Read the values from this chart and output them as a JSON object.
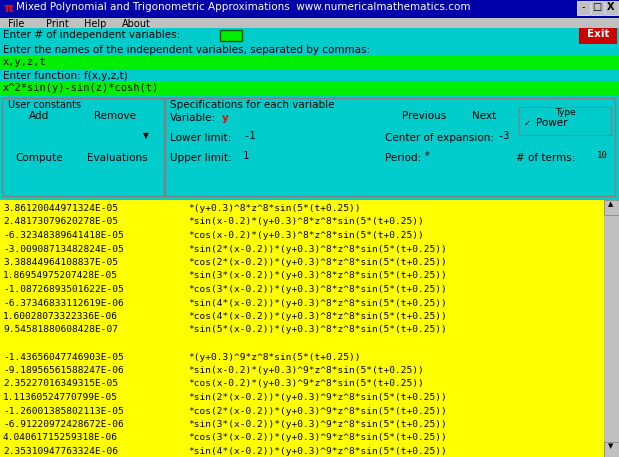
{
  "title": "Mixed Polynomial and Trigonometric Approximations  www.numericalmathematics.com",
  "title_bg": "#0000aa",
  "title_fg": "#ffffff",
  "title_pi": "π",
  "menu_items": [
    "File",
    "Print",
    "Help",
    "About"
  ],
  "bg_color": "#00cccc",
  "row1_label": "Enter # of independent variables:",
  "row1_input_color": "#00ee00",
  "exit_bg": "#cc0000",
  "row2_label": "Enter the names of the independent variables, separated by commas:",
  "row2_input": "x,y,z,t",
  "row2_input_color": "#00ee00",
  "row3_label": "Enter function: f(x,y,z,t)",
  "row3_input": "x^2*sin(y)-sin(z)*cosh(t)",
  "row3_input_color": "#00ee00",
  "user_constants_label": "User constants",
  "add_btn": "Add",
  "remove_btn": "Remove",
  "add_remove_color": "#ff44ff",
  "compute_btn": "Compute",
  "evaluations_btn": "Evaluations",
  "compute_color": "#ff8800",
  "specs_label": "Specifications for each variable",
  "variable_color": "#ff0000",
  "previous_btn": "Previous",
  "next_btn": "Next",
  "btn_orange": "#ff8800",
  "lower_limit_label": "Lower limit:",
  "lower_limit_val": "-1",
  "upper_limit_label": "Upper limit:",
  "upper_limit_val": "1",
  "center_label": "Center of expansion:",
  "center_val": "-3",
  "period_label": "Period:",
  "period_val": "*",
  "terms_label": "# of terms:",
  "terms_val": "10",
  "type_label": "Type",
  "power_label": "Power",
  "input_green": "#00ff00",
  "output_bg": "#ffff00",
  "output_fg": "#000000",
  "scrollbar_color": "#c0c0c0",
  "menu_bg": "#c0c0c0",
  "output_lines": [
    [
      "3.86120044971324E-05",
      "*(y+0.3)^8*z^8*sin(5*(t+0.25))"
    ],
    [
      "2.48173079620278E-05",
      "*sin(x-0.2)*(y+0.3)^8*z^8*sin(5*(t+0.25))"
    ],
    [
      "-6.32348389641418E-05",
      "*cos(x-0.2)*(y+0.3)^8*z^8*sin(5*(t+0.25))"
    ],
    [
      "-3.00908713482824E-05",
      "*sin(2*(x-0.2))*(y+0.3)^8*z^8*sin(5*(t+0.25))"
    ],
    [
      "3.38844964108837E-05",
      "*cos(2*(x-0.2))*(y+0.3)^8*z^8*sin(5*(t+0.25))"
    ],
    [
      "1.86954975207428E-05",
      "*sin(3*(x-0.2))*(y+0.3)^8*z^8*sin(5*(t+0.25))"
    ],
    [
      "-1.08726893501622E-05",
      "*cos(3*(x-0.2))*(y+0.3)^8*z^8*sin(5*(t+0.25))"
    ],
    [
      "-6.37346833112619E-06",
      "*sin(4*(x-0.2))*(y+0.3)^8*z^8*sin(5*(t+0.25))"
    ],
    [
      "1.60028073322336E-06",
      "*cos(4*(x-0.2))*(y+0.3)^8*z^8*sin(5*(t+0.25))"
    ],
    [
      "9.54581880608428E-07",
      "*sin(5*(x-0.2))*(y+0.3)^8*z^8*sin(5*(t+0.25))"
    ],
    [
      "",
      ""
    ],
    [
      "-1.43656047746903E-05",
      "*(y+0.3)^9*z^8*sin(5*(t+0.25))"
    ],
    [
      "-9.18956561588247E-06",
      "*sin(x-0.2)*(y+0.3)^9*z^8*sin(5*(t+0.25))"
    ],
    [
      "2.35227016349315E-05",
      "*cos(x-0.2)*(y+0.3)^9*z^8*sin(5*(t+0.25))"
    ],
    [
      "1.11360524770799E-05",
      "*sin(2*(x-0.2))*(y+0.3)^9*z^8*sin(5*(t+0.25))"
    ],
    [
      "-1.26001385802113E-05",
      "*cos(2*(x-0.2))*(y+0.3)^9*z^8*sin(5*(t+0.25))"
    ],
    [
      "-6.91220972428672E-06",
      "*sin(3*(x-0.2))*(y+0.3)^9*z^8*sin(5*(t+0.25))"
    ],
    [
      "4.04061715259318E-06",
      "*cos(3*(x-0.2))*(y+0.3)^9*z^8*sin(5*(t+0.25))"
    ],
    [
      "2.35310947763324E-06",
      "*sin(4*(x-0.2))*(y+0.3)^9*z^8*sin(5*(t+0.25))"
    ]
  ],
  "fig_width": 6.19,
  "fig_height": 4.57,
  "dpi": 100
}
